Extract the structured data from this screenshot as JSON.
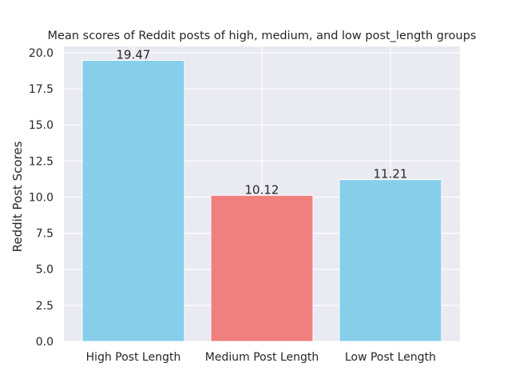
{
  "chart_data": {
    "type": "bar",
    "title": "Mean scores of Reddit posts of high, medium, and low post_length groups",
    "xlabel": "",
    "ylabel": "Reddit Post Scores",
    "categories": [
      "High Post Length",
      "Medium Post Length",
      "Low Post Length"
    ],
    "values": [
      19.47,
      10.12,
      11.21
    ],
    "value_labels": [
      "19.47",
      "10.12",
      "11.21"
    ],
    "bar_colors": [
      "#87ceeb",
      "#f08080",
      "#87ceeb"
    ],
    "ylim": [
      0,
      20.44
    ],
    "yticks": [
      0.0,
      2.5,
      5.0,
      7.5,
      10.0,
      12.5,
      15.0,
      17.5,
      20.0
    ],
    "ytick_labels": [
      "0.0",
      "2.5",
      "5.0",
      "7.5",
      "10.0",
      "12.5",
      "15.0",
      "17.5",
      "20.0"
    ],
    "grid": true,
    "style": {
      "plot_background": "#eaeaf2",
      "grid_color": "#ffffff",
      "text_color": "#262626",
      "bar_edge_color": "#ffffff"
    }
  }
}
